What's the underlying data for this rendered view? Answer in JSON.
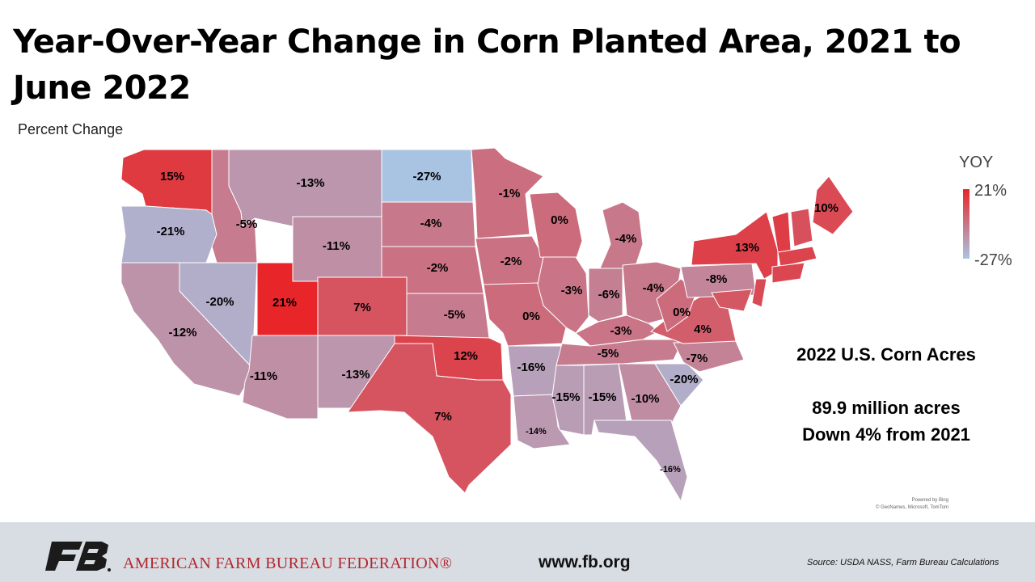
{
  "title": "Year-Over-Year Change in Corn Planted Area, 2021 to June 2022",
  "subtitle": "Percent Change",
  "legend": {
    "title": "YOY",
    "max_label": "21%",
    "min_label": "-27%",
    "high_color": "#e8262a",
    "low_color": "#a9c4e3"
  },
  "summary": {
    "line1": "2022 U.S. Corn Acres",
    "line2": "",
    "line3": "89.9 million acres",
    "line4": "Down 4% from 2021"
  },
  "map_credit": {
    "line1": "Powered by Bing",
    "line2": "© GeoNames, Microsoft, TomTom"
  },
  "footer": {
    "org_name": "AMERICAN FARM BUREAU FEDERATION®",
    "url": "www.fb.org",
    "source": "Source: USDA NASS, Farm Bureau Calculations"
  },
  "chart_data": {
    "type": "choropleth",
    "title": "Year-Over-Year Change in Corn Planted Area, 2021 to June 2022",
    "subtitle": "Percent Change",
    "legend_title": "YOY",
    "value_range": [
      -27,
      21
    ],
    "states": [
      {
        "state": "WA",
        "value": 15,
        "label": "15%"
      },
      {
        "state": "OR",
        "value": -21,
        "label": "-21%"
      },
      {
        "state": "CA",
        "value": -12,
        "label": "-12%"
      },
      {
        "state": "ID",
        "value": -5,
        "label": "-5%"
      },
      {
        "state": "NV",
        "value": -20,
        "label": "-20%"
      },
      {
        "state": "UT",
        "value": 21,
        "label": "21%"
      },
      {
        "state": "AZ",
        "value": -11,
        "label": "-11%"
      },
      {
        "state": "MT",
        "value": -13,
        "label": "-13%"
      },
      {
        "state": "WY",
        "value": -11,
        "label": "-11%"
      },
      {
        "state": "CO",
        "value": 7,
        "label": "7%"
      },
      {
        "state": "NM",
        "value": -13,
        "label": "-13%"
      },
      {
        "state": "ND",
        "value": -27,
        "label": "-27%"
      },
      {
        "state": "SD",
        "value": -4,
        "label": "-4%"
      },
      {
        "state": "NE",
        "value": -2,
        "label": "-2%"
      },
      {
        "state": "KS",
        "value": -5,
        "label": "-5%"
      },
      {
        "state": "OK",
        "value": 12,
        "label": "12%"
      },
      {
        "state": "TX",
        "value": 7,
        "label": "7%"
      },
      {
        "state": "MN",
        "value": -1,
        "label": "-1%"
      },
      {
        "state": "IA",
        "value": -2,
        "label": "-2%"
      },
      {
        "state": "MO",
        "value": 0,
        "label": "0%"
      },
      {
        "state": "AR",
        "value": -16,
        "label": "-16%"
      },
      {
        "state": "LA",
        "value": -14,
        "label": "-14%"
      },
      {
        "state": "WI",
        "value": 0,
        "label": "0%"
      },
      {
        "state": "IL",
        "value": -3,
        "label": "-3%"
      },
      {
        "state": "MI",
        "value": -4,
        "label": "-4%"
      },
      {
        "state": "IN",
        "value": -6,
        "label": "-6%"
      },
      {
        "state": "OH",
        "value": -4,
        "label": "-4%"
      },
      {
        "state": "KY",
        "value": -3,
        "label": "-3%"
      },
      {
        "state": "TN",
        "value": -5,
        "label": "-5%"
      },
      {
        "state": "MS",
        "value": -15,
        "label": "-15%"
      },
      {
        "state": "AL",
        "value": -15,
        "label": "-15%"
      },
      {
        "state": "GA",
        "value": -10,
        "label": "-10%"
      },
      {
        "state": "FL",
        "value": -16,
        "label": "-16%"
      },
      {
        "state": "SC",
        "value": -20,
        "label": "-20%"
      },
      {
        "state": "NC",
        "value": -7,
        "label": "-7%"
      },
      {
        "state": "VA",
        "value": 4,
        "label": "4%"
      },
      {
        "state": "WV",
        "value": 0,
        "label": "0%"
      },
      {
        "state": "PA",
        "value": -8,
        "label": "-8%"
      },
      {
        "state": "NY",
        "value": 13,
        "label": "13%"
      },
      {
        "state": "ME",
        "value": 10,
        "label": "10%"
      }
    ]
  }
}
